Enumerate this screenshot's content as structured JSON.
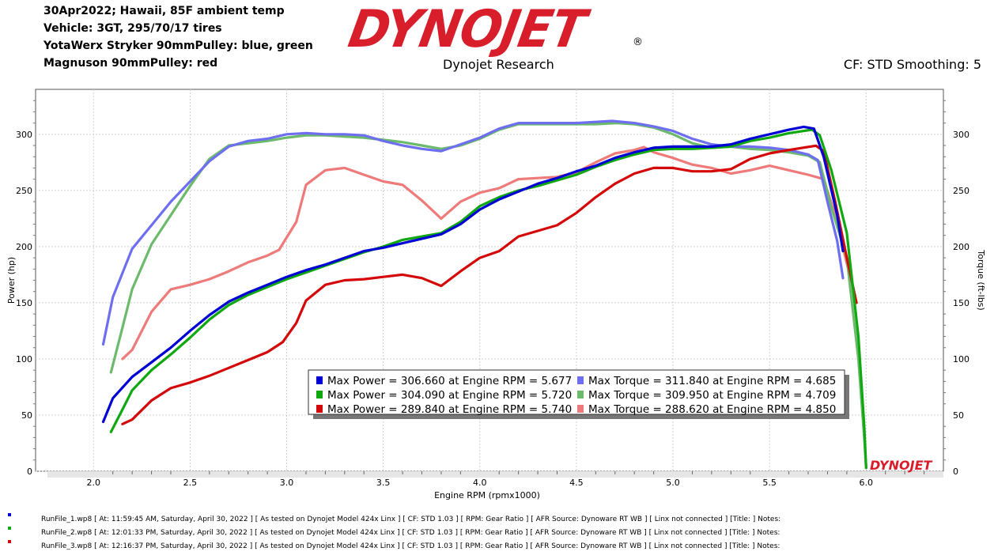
{
  "header": {
    "lines": [
      "30Apr2022; Hawaii, 85F ambient temp",
      "Vehicle: 3GT, 295/70/17 tires",
      "YotaWerx Stryker 90mmPulley: blue, green",
      "Magnuson 90mmPulley: red"
    ],
    "logo_text": "DYNOJET",
    "logo_reg": "®",
    "subtitle": "Dynojet Research",
    "cf_label": "CF: STD Smoothing: 5",
    "watermark": "DYNOJET"
  },
  "colors": {
    "run1_power": "#0000d4",
    "run2_power": "#10a810",
    "run3_power": "#d40808",
    "run1_torque": "#6e6ef0",
    "run2_torque": "#6cba6c",
    "run3_torque": "#ee7a7a",
    "logo": "#d81e2b"
  },
  "chart_data": {
    "type": "line",
    "xlabel": "Engine RPM (rpmx1000)",
    "ylabel": "Power (hp)",
    "y2label": "Torque (ft-lbs)",
    "xlim": [
      1.7,
      6.4
    ],
    "ylim": [
      0,
      340
    ],
    "y2lim": [
      0,
      340
    ],
    "x_ticks": [
      "2.0",
      "2.5",
      "3.0",
      "3.5",
      "4.0",
      "4.5",
      "5.0",
      "5.5",
      "6.0"
    ],
    "y_ticks": [
      "0",
      "50",
      "100",
      "150",
      "200",
      "250",
      "300"
    ],
    "y2_ticks": [
      "0",
      "50",
      "100",
      "150",
      "200",
      "250",
      "300"
    ],
    "grid": true,
    "series": [
      {
        "key": "run1_power",
        "points": [
          [
            2.05,
            44
          ],
          [
            2.1,
            65
          ],
          [
            2.2,
            84
          ],
          [
            2.3,
            97
          ],
          [
            2.4,
            110
          ],
          [
            2.5,
            125
          ],
          [
            2.6,
            139
          ],
          [
            2.7,
            151
          ],
          [
            2.8,
            159
          ],
          [
            2.9,
            166
          ],
          [
            3.0,
            173
          ],
          [
            3.1,
            179
          ],
          [
            3.2,
            184
          ],
          [
            3.3,
            190
          ],
          [
            3.4,
            196
          ],
          [
            3.5,
            199
          ],
          [
            3.6,
            203
          ],
          [
            3.7,
            207
          ],
          [
            3.8,
            211
          ],
          [
            3.9,
            220
          ],
          [
            4.0,
            233
          ],
          [
            4.1,
            242
          ],
          [
            4.2,
            249
          ],
          [
            4.3,
            256
          ],
          [
            4.4,
            261
          ],
          [
            4.5,
            267
          ],
          [
            4.6,
            272
          ],
          [
            4.7,
            279
          ],
          [
            4.8,
            284
          ],
          [
            4.9,
            288
          ],
          [
            5.0,
            289
          ],
          [
            5.1,
            289
          ],
          [
            5.2,
            289
          ],
          [
            5.3,
            291
          ],
          [
            5.4,
            296
          ],
          [
            5.5,
            300
          ],
          [
            5.6,
            304
          ],
          [
            5.677,
            306.66
          ],
          [
            5.73,
            305
          ],
          [
            5.78,
            280
          ],
          [
            5.85,
            228
          ],
          [
            5.88,
            196
          ]
        ]
      },
      {
        "key": "run2_power",
        "points": [
          [
            2.09,
            35
          ],
          [
            2.15,
            55
          ],
          [
            2.2,
            72
          ],
          [
            2.3,
            90
          ],
          [
            2.4,
            104
          ],
          [
            2.5,
            119
          ],
          [
            2.6,
            135
          ],
          [
            2.7,
            148
          ],
          [
            2.8,
            157
          ],
          [
            2.9,
            164
          ],
          [
            3.0,
            171
          ],
          [
            3.1,
            177
          ],
          [
            3.2,
            183
          ],
          [
            3.3,
            189
          ],
          [
            3.4,
            195
          ],
          [
            3.5,
            200
          ],
          [
            3.6,
            206
          ],
          [
            3.7,
            209
          ],
          [
            3.8,
            212
          ],
          [
            3.9,
            222
          ],
          [
            4.0,
            236
          ],
          [
            4.1,
            244
          ],
          [
            4.2,
            250
          ],
          [
            4.3,
            254
          ],
          [
            4.4,
            259
          ],
          [
            4.5,
            264
          ],
          [
            4.6,
            271
          ],
          [
            4.7,
            277
          ],
          [
            4.8,
            282
          ],
          [
            4.9,
            286
          ],
          [
            5.0,
            287
          ],
          [
            5.1,
            287
          ],
          [
            5.2,
            288
          ],
          [
            5.3,
            289
          ],
          [
            5.4,
            294
          ],
          [
            5.5,
            297
          ],
          [
            5.6,
            301
          ],
          [
            5.72,
            304.09
          ],
          [
            5.76,
            299
          ],
          [
            5.82,
            268
          ],
          [
            5.9,
            212
          ],
          [
            5.96,
            120
          ],
          [
            5.99,
            40
          ],
          [
            6.0,
            3
          ]
        ]
      },
      {
        "key": "run3_power",
        "points": [
          [
            2.15,
            42
          ],
          [
            2.2,
            46
          ],
          [
            2.3,
            63
          ],
          [
            2.4,
            74
          ],
          [
            2.5,
            79
          ],
          [
            2.6,
            85
          ],
          [
            2.7,
            92
          ],
          [
            2.8,
            99
          ],
          [
            2.9,
            106
          ],
          [
            2.98,
            115
          ],
          [
            3.05,
            132
          ],
          [
            3.1,
            152
          ],
          [
            3.2,
            166
          ],
          [
            3.3,
            170
          ],
          [
            3.4,
            171
          ],
          [
            3.5,
            173
          ],
          [
            3.6,
            175
          ],
          [
            3.7,
            172
          ],
          [
            3.8,
            165
          ],
          [
            3.9,
            178
          ],
          [
            4.0,
            190
          ],
          [
            4.1,
            196
          ],
          [
            4.2,
            209
          ],
          [
            4.3,
            214
          ],
          [
            4.4,
            219
          ],
          [
            4.5,
            230
          ],
          [
            4.6,
            244
          ],
          [
            4.7,
            256
          ],
          [
            4.8,
            265
          ],
          [
            4.9,
            270
          ],
          [
            5.0,
            270
          ],
          [
            5.1,
            267
          ],
          [
            5.2,
            267
          ],
          [
            5.3,
            269
          ],
          [
            5.4,
            278
          ],
          [
            5.5,
            283
          ],
          [
            5.6,
            286
          ],
          [
            5.74,
            289.84
          ],
          [
            5.78,
            285
          ],
          [
            5.84,
            240
          ],
          [
            5.9,
            190
          ],
          [
            5.95,
            150
          ]
        ]
      },
      {
        "key": "run1_torque",
        "points": [
          [
            2.05,
            113
          ],
          [
            2.1,
            155
          ],
          [
            2.2,
            198
          ],
          [
            2.3,
            219
          ],
          [
            2.4,
            240
          ],
          [
            2.5,
            258
          ],
          [
            2.6,
            276
          ],
          [
            2.7,
            289
          ],
          [
            2.8,
            294
          ],
          [
            2.9,
            296
          ],
          [
            3.0,
            300
          ],
          [
            3.1,
            301
          ],
          [
            3.2,
            300
          ],
          [
            3.3,
            300
          ],
          [
            3.4,
            299
          ],
          [
            3.5,
            294
          ],
          [
            3.6,
            290
          ],
          [
            3.7,
            287
          ],
          [
            3.8,
            285
          ],
          [
            3.9,
            291
          ],
          [
            4.0,
            297
          ],
          [
            4.1,
            305
          ],
          [
            4.2,
            310
          ],
          [
            4.3,
            310
          ],
          [
            4.4,
            310
          ],
          [
            4.5,
            310
          ],
          [
            4.6,
            311
          ],
          [
            4.685,
            311.84
          ],
          [
            4.8,
            310
          ],
          [
            4.9,
            307
          ],
          [
            5.0,
            303
          ],
          [
            5.1,
            296
          ],
          [
            5.2,
            291
          ],
          [
            5.3,
            289
          ],
          [
            5.4,
            289
          ],
          [
            5.5,
            288
          ],
          [
            5.6,
            286
          ],
          [
            5.7,
            282
          ],
          [
            5.75,
            277
          ],
          [
            5.8,
            240
          ],
          [
            5.85,
            205
          ],
          [
            5.88,
            172
          ]
        ]
      },
      {
        "key": "run2_torque",
        "points": [
          [
            2.09,
            88
          ],
          [
            2.15,
            128
          ],
          [
            2.2,
            162
          ],
          [
            2.3,
            202
          ],
          [
            2.4,
            228
          ],
          [
            2.5,
            254
          ],
          [
            2.6,
            278
          ],
          [
            2.7,
            290
          ],
          [
            2.8,
            292
          ],
          [
            2.9,
            294
          ],
          [
            3.0,
            297
          ],
          [
            3.1,
            299
          ],
          [
            3.2,
            299
          ],
          [
            3.3,
            298
          ],
          [
            3.4,
            297
          ],
          [
            3.5,
            295
          ],
          [
            3.6,
            293
          ],
          [
            3.7,
            290
          ],
          [
            3.8,
            287
          ],
          [
            3.9,
            290
          ],
          [
            4.0,
            296
          ],
          [
            4.1,
            304
          ],
          [
            4.2,
            309
          ],
          [
            4.3,
            309
          ],
          [
            4.4,
            309
          ],
          [
            4.5,
            309
          ],
          [
            4.6,
            309
          ],
          [
            4.709,
            309.95
          ],
          [
            4.8,
            309
          ],
          [
            4.9,
            306
          ],
          [
            5.0,
            300
          ],
          [
            5.1,
            292
          ],
          [
            5.2,
            288
          ],
          [
            5.3,
            289
          ],
          [
            5.4,
            287
          ],
          [
            5.5,
            286
          ],
          [
            5.6,
            284
          ],
          [
            5.7,
            281
          ],
          [
            5.76,
            275
          ],
          [
            5.82,
            235
          ],
          [
            5.9,
            190
          ],
          [
            5.96,
            100
          ],
          [
            5.99,
            30
          ],
          [
            6.0,
            3
          ]
        ]
      },
      {
        "key": "run3_torque",
        "points": [
          [
            2.15,
            100
          ],
          [
            2.2,
            108
          ],
          [
            2.3,
            142
          ],
          [
            2.4,
            162
          ],
          [
            2.5,
            166
          ],
          [
            2.6,
            171
          ],
          [
            2.7,
            178
          ],
          [
            2.8,
            186
          ],
          [
            2.9,
            192
          ],
          [
            2.96,
            197
          ],
          [
            3.05,
            222
          ],
          [
            3.1,
            255
          ],
          [
            3.2,
            268
          ],
          [
            3.3,
            270
          ],
          [
            3.4,
            264
          ],
          [
            3.5,
            258
          ],
          [
            3.6,
            255
          ],
          [
            3.7,
            241
          ],
          [
            3.8,
            225
          ],
          [
            3.9,
            240
          ],
          [
            4.0,
            248
          ],
          [
            4.1,
            252
          ],
          [
            4.2,
            260
          ],
          [
            4.3,
            261
          ],
          [
            4.4,
            262
          ],
          [
            4.5,
            266
          ],
          [
            4.6,
            275
          ],
          [
            4.7,
            283
          ],
          [
            4.8,
            286
          ],
          [
            4.85,
            288.62
          ],
          [
            4.9,
            284
          ],
          [
            5.0,
            279
          ],
          [
            5.1,
            273
          ],
          [
            5.2,
            270
          ],
          [
            5.3,
            265
          ],
          [
            5.4,
            268
          ],
          [
            5.5,
            272
          ],
          [
            5.6,
            268
          ],
          [
            5.7,
            264
          ],
          [
            5.78,
            260
          ],
          [
            5.84,
            228
          ],
          [
            5.9,
            185
          ],
          [
            5.95,
            150
          ]
        ]
      }
    ],
    "legend": [
      {
        "key": "run1_power",
        "text": "Max Power = 306.660 at Engine RPM = 5.677"
      },
      {
        "key": "run1_torque",
        "text": "Max Torque = 311.840 at Engine RPM = 4.685"
      },
      {
        "key": "run2_power",
        "text": "Max Power = 304.090 at Engine RPM = 5.720"
      },
      {
        "key": "run2_torque",
        "text": "Max Torque = 309.950 at Engine RPM = 4.709"
      },
      {
        "key": "run3_power",
        "text": "Max Power = 289.840 at Engine RPM = 5.740"
      },
      {
        "key": "run3_torque",
        "text": "Max Torque = 288.620 at Engine RPM = 4.850"
      }
    ],
    "legend_placement": "bottom-center"
  },
  "footer": [
    {
      "key": "run1_power",
      "text": "RunFile_1.wp8 [ At: 11:59:45 AM, Saturday, April 30, 2022 ] [ As tested on Dynojet Model 424x Linx ] [ CF: STD 1.03 ] [ RPM: Gear Ratio ] [ AFR Source: Dynoware RT WB ] [ Linx not connected ] [Title: ]  Notes:"
    },
    {
      "key": "run2_power",
      "text": "RunFile_2.wp8 [ At: 12:01:33 PM, Saturday, April 30, 2022 ] [ As tested on Dynojet Model 424x Linx ] [ CF: STD 1.03 ] [ RPM: Gear Ratio ] [ AFR Source: Dynoware RT WB ] [ Linx not connected ] [Title: ]  Notes:"
    },
    {
      "key": "run3_power",
      "text": "RunFile_3.wp8 [ At: 12:16:37 PM, Saturday, April 30, 2022 ] [ As tested on Dynojet Model 424x Linx ] [ CF: STD 1.03 ] [ RPM: Gear Ratio ] [ AFR Source: Dynoware RT WB ] [ Linx not connected ] [Title: ]  Notes:"
    }
  ]
}
